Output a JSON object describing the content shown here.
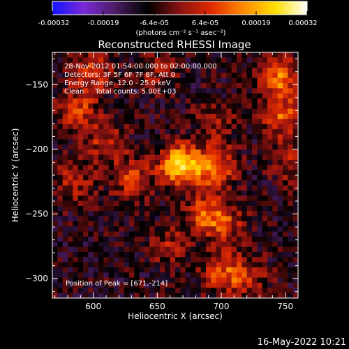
{
  "chart_data": {
    "type": "heatmap",
    "title": "Reconstructed RHESSI Image",
    "xlabel": "Heliocentric X (arcsec)",
    "ylabel": "Heliocentric Y (arcsec)",
    "xlim": [
      568,
      760
    ],
    "ylim": [
      -315,
      -125
    ],
    "x_ticks": [
      600,
      650,
      700,
      750
    ],
    "y_ticks": [
      -150,
      -200,
      -250,
      -300
    ],
    "colorbar": {
      "ticks": [
        "-0.00032",
        "-0.00019",
        "-6.4e-05",
        "6.4e-05",
        "0.00019",
        "0.00032"
      ],
      "unit_label": "(photons cm⁻² s⁻¹ asec⁻²)",
      "range": [
        -0.00032,
        0.00032
      ],
      "colors": [
        "#1414ff",
        "#7a2ad6",
        "#4a1c60",
        "#000000",
        "#8a1212",
        "#e02a00",
        "#ff8a00",
        "#ffe000",
        "#ffffff"
      ]
    },
    "annotations": [
      "28-Nov-2012 01:54:00.000 to 02:00:00.000",
      "Detectors: 3F 5F 6F 7F 8F, Att 0",
      "Energy Range: 12.0 - 25.0 keV",
      "Clean     Total counts: 5.00E+03"
    ],
    "peak": {
      "x": 671,
      "y": -214,
      "label": "Position of Peak = [671,-214]"
    },
    "sources": [
      {
        "x": 668,
        "y": -212,
        "intensity": 0.00032
      },
      {
        "x": 695,
        "y": -215,
        "intensity": 0.00022
      },
      {
        "x": 630,
        "y": -222,
        "intensity": 0.00015
      },
      {
        "x": 688,
        "y": -250,
        "intensity": 0.00018
      },
      {
        "x": 705,
        "y": -258,
        "intensity": 0.00012
      },
      {
        "x": 610,
        "y": -195,
        "intensity": 0.00013
      },
      {
        "x": 588,
        "y": -170,
        "intensity": 0.00016
      },
      {
        "x": 585,
        "y": -225,
        "intensity": 0.00012
      },
      {
        "x": 745,
        "y": -145,
        "intensity": 0.00022
      },
      {
        "x": 748,
        "y": -175,
        "intensity": 0.00018
      },
      {
        "x": 755,
        "y": -210,
        "intensity": 0.00012
      },
      {
        "x": 600,
        "y": -140,
        "intensity": 0.00015
      },
      {
        "x": 650,
        "y": -140,
        "intensity": 0.0001
      },
      {
        "x": 700,
        "y": -295,
        "intensity": 0.00016
      },
      {
        "x": 720,
        "y": -300,
        "intensity": 0.00012
      },
      {
        "x": 660,
        "y": -275,
        "intensity": 0.0001
      },
      {
        "x": 695,
        "y": -180,
        "intensity": 0.0001
      }
    ]
  },
  "footer_timestamp": "16-May-2022 10:21"
}
